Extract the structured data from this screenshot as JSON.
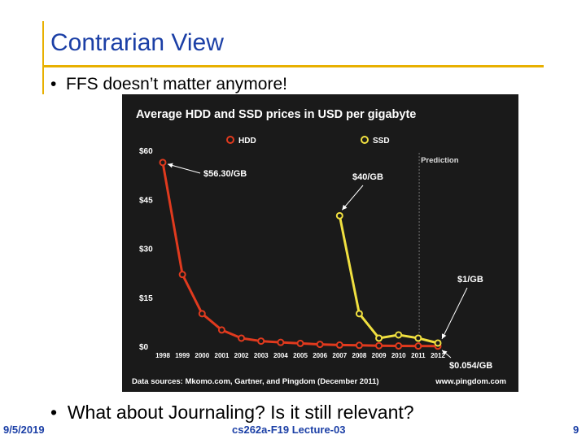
{
  "slide": {
    "title": "Contrarian View",
    "bullets": [
      "FFS doesn’t matter anymore!",
      "What about Journaling? Is it still relevant?"
    ],
    "footer": {
      "date": "9/5/2019",
      "course": "cs262a-F19 Lecture-03",
      "page": "9"
    }
  },
  "colors": {
    "accent_bar": "#e8b000",
    "title": "#1b3fa6",
    "hdd": "#e03a1e",
    "ssd": "#f0e040",
    "chart_bg": "#1a1a1a"
  },
  "chart_data": {
    "type": "line",
    "title": "Average HDD and SSD prices in USD per gigabyte",
    "categories": [
      "1998",
      "1999",
      "2000",
      "2001",
      "2002",
      "2003",
      "2004",
      "2005",
      "2006",
      "2007",
      "2008",
      "2009",
      "2010",
      "2011",
      "2012"
    ],
    "y_ticks": [
      "$60",
      "$45",
      "$30",
      "$15",
      "$0"
    ],
    "ylim": [
      0,
      60
    ],
    "prediction_label": "Prediction",
    "prediction_start": "2011",
    "legend": {
      "position": "top",
      "entries": [
        "HDD",
        "SSD"
      ]
    },
    "series": [
      {
        "name": "HDD",
        "color": "#e03a1e",
        "x": [
          "1998",
          "1999",
          "2000",
          "2001",
          "2002",
          "2003",
          "2004",
          "2005",
          "2006",
          "2007",
          "2008",
          "2009",
          "2010",
          "2011",
          "2012"
        ],
        "values": [
          56.3,
          22,
          10,
          5,
          2.5,
          1.6,
          1.2,
          0.9,
          0.6,
          0.4,
          0.3,
          0.2,
          0.12,
          0.08,
          0.054
        ]
      },
      {
        "name": "SSD",
        "color": "#f0e040",
        "x": [
          "2007",
          "2008",
          "2009",
          "2010",
          "2011",
          "2012"
        ],
        "values": [
          40,
          10,
          2.5,
          3.5,
          2.5,
          1
        ]
      }
    ],
    "annotations": [
      "$56.30/GB",
      "$40/GB",
      "$1/GB",
      "$0.054/GB"
    ],
    "source_text": "Data sources: Mkomo.com, Gartner, and Pingdom (December 2011)",
    "credit": "www.pingdom.com"
  }
}
